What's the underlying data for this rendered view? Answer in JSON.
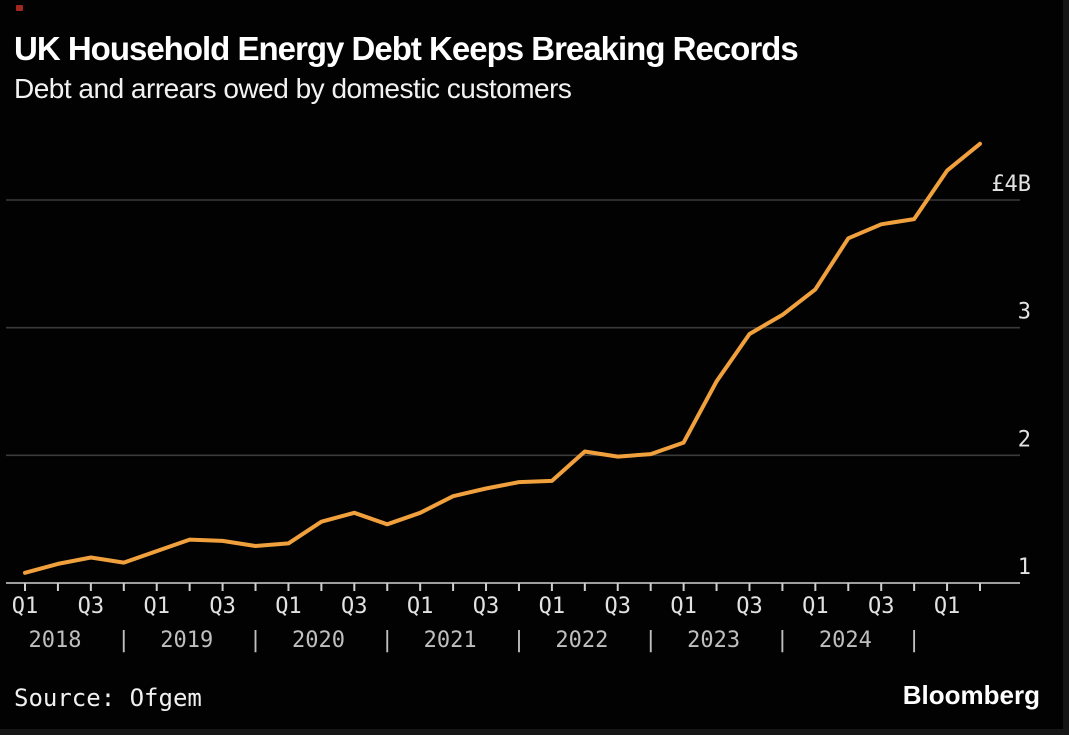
{
  "header": {
    "title": "UK Household Energy Debt Keeps Breaking Records",
    "subtitle": "Debt and arrears owed by domestic customers"
  },
  "footer": {
    "source": "Source: Ofgem",
    "brand": "Bloomberg"
  },
  "colors": {
    "background": "#020202",
    "line": "#F0A03C",
    "gridline": "#3A3A3A",
    "axis": "#9E9E9E",
    "tick": "#CFCFCF",
    "axis_label": "#E2E2E2",
    "year_label": "#BFBFBF",
    "title_text": "#FFFFFF",
    "red_dot": "#A3271F"
  },
  "chart_data": {
    "type": "line",
    "title": "UK Household Energy Debt Keeps Breaking Records",
    "subtitle": "Debt and arrears owed by domestic customers",
    "unit": "GBP billions",
    "grid": "horizontal",
    "legend": "none",
    "x": [
      "2018 Q1",
      "2018 Q2",
      "2018 Q3",
      "2018 Q4",
      "2019 Q1",
      "2019 Q2",
      "2019 Q3",
      "2019 Q4",
      "2020 Q1",
      "2020 Q2",
      "2020 Q3",
      "2020 Q4",
      "2021 Q1",
      "2021 Q2",
      "2021 Q3",
      "2021 Q4",
      "2022 Q1",
      "2022 Q2",
      "2022 Q3",
      "2022 Q4",
      "2023 Q1",
      "2023 Q2",
      "2023 Q3",
      "2023 Q4",
      "2024 Q1",
      "2024 Q2",
      "2024 Q3",
      "2024 Q4",
      "2025 Q1",
      "2025 Q2"
    ],
    "values": [
      1.08,
      1.15,
      1.2,
      1.16,
      1.25,
      1.34,
      1.33,
      1.29,
      1.31,
      1.48,
      1.55,
      1.46,
      1.55,
      1.68,
      1.74,
      1.79,
      1.8,
      2.03,
      1.99,
      2.01,
      2.1,
      2.58,
      2.95,
      3.1,
      3.3,
      3.7,
      3.81,
      3.85,
      4.23,
      4.44
    ],
    "ylim": [
      1,
      4.55
    ],
    "yticks": [
      {
        "value": 1,
        "label": "1"
      },
      {
        "value": 2,
        "label": "2"
      },
      {
        "value": 3,
        "label": "3"
      },
      {
        "value": 4,
        "label": "£4B"
      }
    ],
    "quarter_labels": [
      "Q1",
      "Q3"
    ],
    "year_labels": [
      "2018",
      "2019",
      "2020",
      "2021",
      "2022",
      "2023",
      "2024"
    ],
    "year_separator": "|"
  }
}
